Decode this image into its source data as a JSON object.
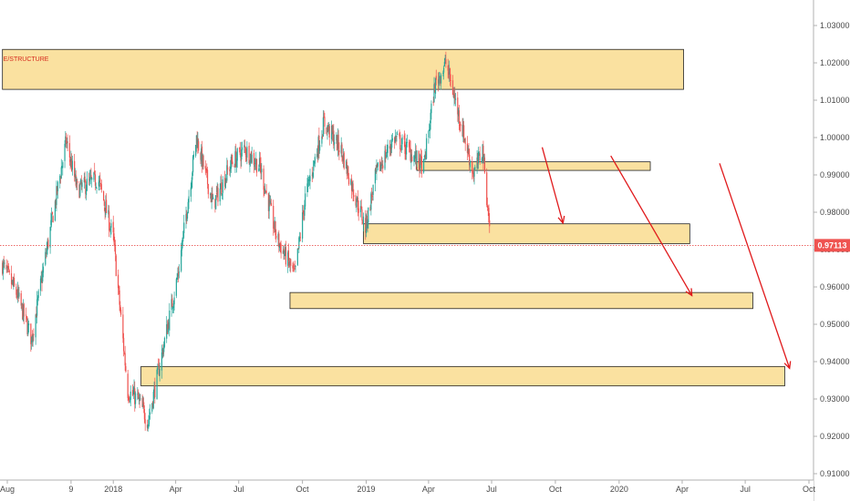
{
  "chart_data": {
    "type": "candlestick",
    "title": "",
    "colors": {
      "up": "#26a69a",
      "down": "#ef5350",
      "zone_fill": "#f9dc8f",
      "zone_border": "#222222",
      "arrow": "#e0191b",
      "price_line": "#e53935",
      "price_badge": "#ef5350"
    },
    "y_axis": {
      "position": "right",
      "ylim": [
        0.9085,
        1.0345
      ],
      "ticks": [
        1.03,
        1.02,
        1.01,
        1.0,
        0.99,
        0.98,
        0.97,
        0.96,
        0.95,
        0.94,
        0.93,
        0.92,
        0.91
      ],
      "tick_labels": [
        "1.03000",
        "1.02000",
        "1.01000",
        "1.00000",
        "0.99000",
        "0.98000",
        "0.97000",
        "0.96000",
        "0.95000",
        "0.94000",
        "0.93000",
        "0.92000",
        "0.91000"
      ]
    },
    "x_axis": {
      "range": [
        "2017-07-25",
        "2020-10-20"
      ],
      "ticks": [
        {
          "date": "2017-08-01",
          "label": "Aug"
        },
        {
          "date": "2017-11-01",
          "label": "9"
        },
        {
          "date": "2018-01-01",
          "label": "2018"
        },
        {
          "date": "2018-04-01",
          "label": "Apr"
        },
        {
          "date": "2018-07-01",
          "label": "Jul"
        },
        {
          "date": "2018-10-01",
          "label": "Oct"
        },
        {
          "date": "2019-01-01",
          "label": "2019"
        },
        {
          "date": "2019-04-01",
          "label": "Apr"
        },
        {
          "date": "2019-07-01",
          "label": "Jul"
        },
        {
          "date": "2019-10-01",
          "label": "Oct"
        },
        {
          "date": "2020-01-01",
          "label": "2020"
        },
        {
          "date": "2020-04-01",
          "label": "Apr"
        },
        {
          "date": "2020-07-01",
          "label": "Jul"
        },
        {
          "date": "2020-10-01",
          "label": "Oct"
        }
      ]
    },
    "price_path": [
      [
        "2017-07-25",
        0.966
      ],
      [
        "2017-08-15",
        0.958
      ],
      [
        "2017-09-05",
        0.946
      ],
      [
        "2017-09-25",
        0.968
      ],
      [
        "2017-10-25",
        0.999
      ],
      [
        "2017-11-10",
        0.986
      ],
      [
        "2017-12-10",
        0.989
      ],
      [
        "2018-01-01",
        0.973
      ],
      [
        "2018-01-22",
        0.932
      ],
      [
        "2018-02-05",
        0.93
      ],
      [
        "2018-02-20",
        0.924
      ],
      [
        "2018-03-10",
        0.94
      ],
      [
        "2018-04-05",
        0.964
      ],
      [
        "2018-05-01",
        1.0
      ],
      [
        "2018-05-25",
        0.982
      ],
      [
        "2018-06-20",
        0.993
      ],
      [
        "2018-07-10",
        0.997
      ],
      [
        "2018-08-01",
        0.992
      ],
      [
        "2018-08-25",
        0.973
      ],
      [
        "2018-09-20",
        0.963
      ],
      [
        "2018-10-05",
        0.984
      ],
      [
        "2018-11-01",
        1.004
      ],
      [
        "2018-11-25",
        0.997
      ],
      [
        "2018-12-15",
        0.985
      ],
      [
        "2018-12-31",
        0.976
      ],
      [
        "2019-01-15",
        0.99
      ],
      [
        "2019-02-10",
        1.0
      ],
      [
        "2019-03-01",
        0.997
      ],
      [
        "2019-03-25",
        0.992
      ],
      [
        "2019-04-10",
        1.014
      ],
      [
        "2019-04-26",
        1.02
      ],
      [
        "2019-05-20",
        1.002
      ],
      [
        "2019-06-05",
        0.99
      ],
      [
        "2019-06-18",
        0.997
      ],
      [
        "2019-06-27",
        0.978
      ],
      [
        "2019-06-30",
        0.9711
      ]
    ],
    "zones": [
      {
        "start": "2017-07-25",
        "end": "2020-04-03",
        "low": 1.0129,
        "high": 1.0236,
        "label": "E/STRUCTURE"
      },
      {
        "start": "2019-03-15",
        "end": "2020-02-15",
        "low": 0.9912,
        "high": 0.9935,
        "label": ""
      },
      {
        "start": "2018-12-28",
        "end": "2020-04-12",
        "low": 0.9716,
        "high": 0.9769,
        "label": ""
      },
      {
        "start": "2018-09-13",
        "end": "2020-07-12",
        "low": 0.9542,
        "high": 0.9585,
        "label": ""
      },
      {
        "start": "2018-02-10",
        "end": "2020-08-27",
        "low": 0.9335,
        "high": 0.9387,
        "label": ""
      }
    ],
    "arrows": [
      {
        "from": [
          "2019-09-12",
          0.9974
        ],
        "to": [
          "2019-10-12",
          0.9771
        ]
      },
      {
        "from": [
          "2019-12-20",
          0.9951
        ],
        "to": [
          "2020-04-15",
          0.9577
        ]
      },
      {
        "from": [
          "2020-05-25",
          0.9931
        ],
        "to": [
          "2020-09-03",
          0.9382
        ]
      }
    ],
    "last_price": {
      "value": 0.97113,
      "label": "0.97113"
    }
  }
}
